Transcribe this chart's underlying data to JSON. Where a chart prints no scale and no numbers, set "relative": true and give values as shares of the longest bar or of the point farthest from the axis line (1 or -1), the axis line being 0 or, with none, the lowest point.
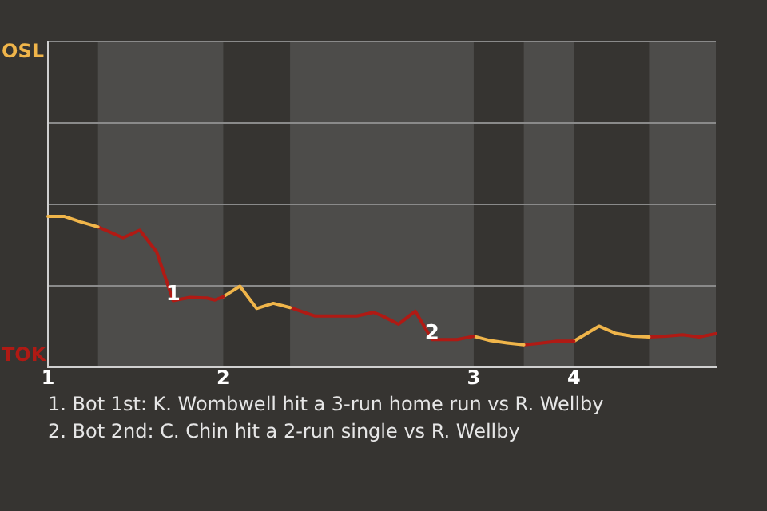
{
  "chart_data": {
    "type": "line",
    "relative": true,
    "ylim": [
      0,
      2.16
    ],
    "grid": "y",
    "marker": "none",
    "categories": [
      "1",
      null,
      null,
      null,
      null,
      null,
      null,
      null,
      null,
      null,
      null,
      null,
      null,
      null,
      null,
      null,
      null,
      null,
      null,
      null,
      null,
      "2",
      null,
      null,
      null,
      null,
      null,
      null,
      null,
      null,
      null,
      null,
      null,
      null,
      null,
      null,
      null,
      null,
      null,
      null,
      null,
      null,
      null,
      null,
      null,
      null,
      null,
      null,
      null,
      null,
      null,
      "3",
      null,
      null,
      null,
      null,
      null,
      null,
      null,
      null,
      null,
      null,
      null,
      "4",
      null,
      null,
      null,
      null,
      null,
      null,
      null,
      null,
      null,
      null,
      null,
      null,
      null,
      null,
      null,
      null,
      null
    ],
    "series": [
      {
        "color": "#f0b54a",
        "values": [
          1,
          null,
          1,
          null,
          0.963,
          null,
          0.931,
          null,
          null,
          null,
          null,
          null,
          null,
          null,
          null,
          null,
          null,
          null,
          null,
          null,
          null,
          null,
          null,
          null,
          null,
          null,
          null,
          null,
          null,
          null,
          null,
          null,
          null,
          null,
          null,
          null,
          null,
          null,
          null,
          null,
          null,
          null,
          null,
          null,
          null,
          null,
          null,
          null,
          null,
          null,
          null,
          null,
          null,
          null,
          null,
          null,
          null,
          null,
          null,
          null,
          null,
          null,
          null,
          null,
          null,
          null,
          null,
          null,
          null,
          null,
          null,
          null,
          null,
          null,
          null,
          null,
          null,
          null,
          null,
          null,
          null
        ]
      },
      {
        "color": "#b01a14",
        "values": [
          null,
          null,
          null,
          null,
          null,
          null,
          0.931,
          null,
          null,
          0.859,
          null,
          0.909,
          null,
          0.768,
          null,
          0.442,
          null,
          0.463,
          null,
          0.459,
          0.446,
          0.468,
          null,
          null,
          null,
          null,
          null,
          null,
          null,
          null,
          null,
          null,
          null,
          null,
          null,
          null,
          null,
          null,
          null,
          null,
          null,
          null,
          null,
          null,
          null,
          null,
          null,
          null,
          null,
          null,
          null,
          null,
          null,
          null,
          null,
          null,
          null,
          null,
          null,
          null,
          null,
          null,
          null,
          null,
          null,
          null,
          null,
          null,
          null,
          null,
          null,
          null,
          null,
          null,
          null,
          null,
          null,
          null,
          null,
          null,
          null
        ]
      },
      {
        "color": "#f0b54a",
        "values": [
          null,
          null,
          null,
          null,
          null,
          null,
          null,
          null,
          null,
          null,
          null,
          null,
          null,
          null,
          null,
          null,
          null,
          null,
          null,
          null,
          null,
          0.468,
          null,
          0.537,
          null,
          0.39,
          null,
          0.424,
          null,
          0.396,
          null,
          null,
          null,
          null,
          null,
          null,
          null,
          null,
          null,
          null,
          null,
          null,
          null,
          null,
          null,
          null,
          null,
          null,
          null,
          null,
          null,
          null,
          null,
          null,
          null,
          null,
          null,
          null,
          null,
          null,
          null,
          null,
          null,
          null,
          null,
          null,
          null,
          null,
          null,
          null,
          null,
          null,
          null,
          null,
          null,
          null,
          null,
          null,
          null,
          null,
          null
        ]
      },
      {
        "color": "#b01a14",
        "values": [
          null,
          null,
          null,
          null,
          null,
          null,
          null,
          null,
          null,
          null,
          null,
          null,
          null,
          null,
          null,
          null,
          null,
          null,
          null,
          null,
          null,
          null,
          null,
          null,
          null,
          null,
          null,
          null,
          null,
          0.396,
          null,
          null,
          0.34,
          null,
          null,
          null,
          null,
          0.34,
          null,
          0.364,
          0.342,
          null,
          0.286,
          null,
          0.372,
          null,
          0.184,
          null,
          null,
          0.184,
          null,
          0.206,
          null,
          null,
          null,
          null,
          null,
          null,
          null,
          null,
          null,
          null,
          null,
          null,
          null,
          null,
          null,
          null,
          null,
          null,
          null,
          null,
          null,
          null,
          null,
          null,
          null,
          null,
          null,
          null,
          null
        ]
      },
      {
        "color": "#f0b54a",
        "values": [
          null,
          null,
          null,
          null,
          null,
          null,
          null,
          null,
          null,
          null,
          null,
          null,
          null,
          null,
          null,
          null,
          null,
          null,
          null,
          null,
          null,
          null,
          null,
          null,
          null,
          null,
          null,
          null,
          null,
          null,
          null,
          null,
          null,
          null,
          null,
          null,
          null,
          null,
          null,
          null,
          null,
          null,
          null,
          null,
          null,
          null,
          null,
          null,
          null,
          null,
          null,
          0.206,
          null,
          0.177,
          null,
          0.162,
          null,
          0.149,
          null,
          null,
          null,
          null,
          null,
          null,
          null,
          null,
          null,
          null,
          null,
          null,
          null,
          null,
          null,
          null,
          null,
          null,
          null,
          null,
          null,
          null,
          null
        ]
      },
      {
        "color": "#b01a14",
        "values": [
          null,
          null,
          null,
          null,
          null,
          null,
          null,
          null,
          null,
          null,
          null,
          null,
          null,
          null,
          null,
          null,
          null,
          null,
          null,
          null,
          null,
          null,
          null,
          null,
          null,
          null,
          null,
          null,
          null,
          null,
          null,
          null,
          null,
          null,
          null,
          null,
          null,
          null,
          null,
          null,
          null,
          null,
          null,
          null,
          null,
          null,
          null,
          null,
          null,
          null,
          null,
          null,
          null,
          null,
          null,
          null,
          null,
          0.149,
          null,
          0.16,
          null,
          0.173,
          null,
          0.173,
          null,
          null,
          null,
          null,
          null,
          null,
          null,
          null,
          null,
          null,
          null,
          null,
          null,
          null,
          null,
          null,
          null
        ]
      },
      {
        "color": "#f0b54a",
        "values": [
          null,
          null,
          null,
          null,
          null,
          null,
          null,
          null,
          null,
          null,
          null,
          null,
          null,
          null,
          null,
          null,
          null,
          null,
          null,
          null,
          null,
          null,
          null,
          null,
          null,
          null,
          null,
          null,
          null,
          null,
          null,
          null,
          null,
          null,
          null,
          null,
          null,
          null,
          null,
          null,
          null,
          null,
          null,
          null,
          null,
          null,
          null,
          null,
          null,
          null,
          null,
          null,
          null,
          null,
          null,
          null,
          null,
          null,
          null,
          null,
          null,
          null,
          null,
          0.173,
          null,
          null,
          0.273,
          null,
          0.225,
          null,
          0.206,
          null,
          0.201,
          null,
          null,
          null,
          null,
          null,
          null,
          null,
          null
        ]
      },
      {
        "color": "#b01a14",
        "values": [
          null,
          null,
          null,
          null,
          null,
          null,
          null,
          null,
          null,
          null,
          null,
          null,
          null,
          null,
          null,
          null,
          null,
          null,
          null,
          null,
          null,
          null,
          null,
          null,
          null,
          null,
          null,
          null,
          null,
          null,
          null,
          null,
          null,
          null,
          null,
          null,
          null,
          null,
          null,
          null,
          null,
          null,
          null,
          null,
          null,
          null,
          null,
          null,
          null,
          null,
          null,
          null,
          null,
          null,
          null,
          null,
          null,
          null,
          null,
          null,
          null,
          null,
          null,
          null,
          null,
          null,
          null,
          null,
          null,
          null,
          null,
          null,
          0.201,
          null,
          0.206,
          null,
          0.216,
          null,
          0.201,
          null,
          0.223
        ]
      }
    ],
    "annotations": [
      "OSL",
      "TOK",
      {
        "text": "1",
        "y": 0.442
      },
      {
        "text": "2",
        "y": 0.184
      },
      "1. Bot 1st: K. Wombwell hit a 3-run home run vs R. Wellby",
      "2. Bot 2nd: C. Chin hit a 2-run single vs R. Wellby"
    ]
  }
}
